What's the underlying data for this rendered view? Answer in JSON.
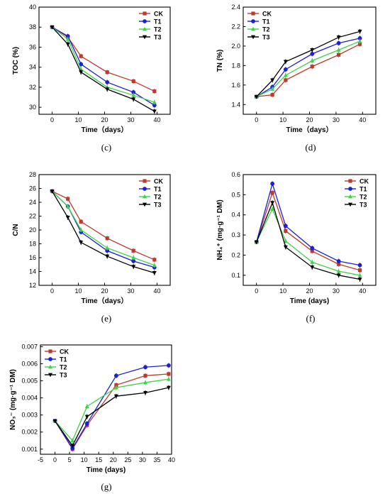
{
  "chart_data": [
    {
      "panel": "(c)",
      "type": "line",
      "xlabel": "Time（days）",
      "ylabel": "TOC (%)",
      "xlim": [
        -5,
        45
      ],
      "ylim": [
        29.3,
        40
      ],
      "xticks": [
        0,
        10,
        20,
        30,
        40
      ],
      "yticks": [
        30,
        32,
        34,
        36,
        38,
        40
      ],
      "x": [
        0,
        6,
        11,
        21,
        31,
        39
      ],
      "legend_position": "top-right",
      "series": [
        {
          "name": "CK",
          "color": "#c0392b",
          "marker": "square",
          "values": [
            38.0,
            37.0,
            35.1,
            33.5,
            32.6,
            31.6
          ]
        },
        {
          "name": "T1",
          "color": "#1f1fd6",
          "marker": "circle",
          "values": [
            38.0,
            37.1,
            34.3,
            32.5,
            31.5,
            30.2
          ]
        },
        {
          "name": "T2",
          "color": "#3fd24a",
          "marker": "triangle",
          "values": [
            38.0,
            36.8,
            33.8,
            32.0,
            31.2,
            30.5
          ]
        },
        {
          "name": "T3",
          "color": "#000000",
          "marker": "triangle-down",
          "values": [
            38.0,
            36.3,
            33.5,
            31.8,
            30.8,
            29.6
          ]
        }
      ]
    },
    {
      "panel": "(d)",
      "type": "line",
      "xlabel": "Time（days）",
      "ylabel": "TN (%)",
      "xlim": [
        -5,
        45
      ],
      "ylim": [
        1.3,
        2.4
      ],
      "xticks": [
        0,
        10,
        20,
        30,
        40
      ],
      "yticks": [
        1.4,
        1.6,
        1.8,
        2.0,
        2.2,
        2.4
      ],
      "x": [
        0,
        6,
        11,
        21,
        31,
        39
      ],
      "legend_position": "top-left",
      "series": [
        {
          "name": "CK",
          "color": "#c0392b",
          "marker": "square",
          "values": [
            1.48,
            1.5,
            1.65,
            1.79,
            1.91,
            2.02
          ]
        },
        {
          "name": "T1",
          "color": "#1f1fd6",
          "marker": "circle",
          "values": [
            1.48,
            1.58,
            1.76,
            1.92,
            2.03,
            2.08
          ]
        },
        {
          "name": "T2",
          "color": "#3fd24a",
          "marker": "triangle",
          "values": [
            1.48,
            1.56,
            1.7,
            1.85,
            1.96,
            2.05
          ]
        },
        {
          "name": "T3",
          "color": "#000000",
          "marker": "triangle-down",
          "values": [
            1.48,
            1.65,
            1.84,
            1.96,
            2.09,
            2.15
          ]
        }
      ]
    },
    {
      "panel": "(e)",
      "type": "line",
      "xlabel": "Time（days）",
      "ylabel": "C/N",
      "xlim": [
        -5,
        45
      ],
      "ylim": [
        12,
        28
      ],
      "xticks": [
        0,
        10,
        20,
        30,
        40
      ],
      "yticks": [
        12,
        14,
        16,
        18,
        20,
        22,
        24,
        26,
        28
      ],
      "x": [
        0,
        6,
        11,
        21,
        31,
        39
      ],
      "legend_position": "top-right",
      "series": [
        {
          "name": "CK",
          "color": "#c0392b",
          "marker": "square",
          "values": [
            25.6,
            24.5,
            21.2,
            18.8,
            17.0,
            15.7
          ]
        },
        {
          "name": "T1",
          "color": "#1f1fd6",
          "marker": "circle",
          "values": [
            25.6,
            23.4,
            19.7,
            17.0,
            15.5,
            14.6
          ]
        },
        {
          "name": "T2",
          "color": "#3fd24a",
          "marker": "triangle",
          "values": [
            25.6,
            23.4,
            20.0,
            17.4,
            16.0,
            14.9
          ]
        },
        {
          "name": "T3",
          "color": "#000000",
          "marker": "triangle-down",
          "values": [
            25.6,
            21.8,
            18.2,
            16.2,
            14.7,
            13.8
          ]
        }
      ]
    },
    {
      "panel": "(f)",
      "type": "line",
      "xlabel": "Time (days)",
      "ylabel": "NH₄⁺ (mg·g⁻¹ DM)",
      "xlim": [
        -5,
        45
      ],
      "ylim": [
        0.05,
        0.6
      ],
      "xticks": [
        0,
        10,
        20,
        30,
        40
      ],
      "yticks": [
        0.1,
        0.2,
        0.3,
        0.4,
        0.5,
        0.6
      ],
      "x": [
        0,
        6,
        11,
        21,
        31,
        39
      ],
      "legend_position": "top-right",
      "series": [
        {
          "name": "CK",
          "color": "#c0392b",
          "marker": "square",
          "values": [
            0.265,
            0.51,
            0.32,
            0.22,
            0.155,
            0.125
          ]
        },
        {
          "name": "T1",
          "color": "#1f1fd6",
          "marker": "circle",
          "values": [
            0.265,
            0.555,
            0.345,
            0.235,
            0.17,
            0.15
          ]
        },
        {
          "name": "T2",
          "color": "#3fd24a",
          "marker": "triangle",
          "values": [
            0.265,
            0.43,
            0.27,
            0.165,
            0.12,
            0.1
          ]
        },
        {
          "name": "T3",
          "color": "#000000",
          "marker": "triangle-down",
          "values": [
            0.265,
            0.46,
            0.24,
            0.14,
            0.1,
            0.08
          ]
        }
      ]
    },
    {
      "panel": "(g)",
      "type": "line",
      "xlabel": "Time (days)",
      "ylabel": "NO₃⁻ (mg·g⁻¹ DM)",
      "xlim": [
        -5,
        40
      ],
      "ylim": [
        0.0007,
        0.0071
      ],
      "xticks": [
        -5,
        0,
        5,
        10,
        15,
        20,
        25,
        30,
        35,
        40
      ],
      "yticks": [
        0.001,
        0.002,
        0.003,
        0.004,
        0.005,
        0.006,
        0.007
      ],
      "ytick_labels": [
        "0.001",
        "0.002",
        "0.003",
        "0.004",
        "0.005",
        "0.006",
        "0.007"
      ],
      "x": [
        0,
        6,
        11,
        21,
        31,
        39
      ],
      "legend_position": "top-left",
      "series": [
        {
          "name": "CK",
          "color": "#c0392b",
          "marker": "square",
          "values": [
            0.00265,
            0.001,
            0.0024,
            0.00475,
            0.0053,
            0.0054
          ]
        },
        {
          "name": "T1",
          "color": "#1f1fd6",
          "marker": "circle",
          "values": [
            0.00265,
            0.00105,
            0.0025,
            0.0053,
            0.0058,
            0.0059
          ]
        },
        {
          "name": "T2",
          "color": "#3fd24a",
          "marker": "triangle",
          "values": [
            0.00265,
            0.0015,
            0.0035,
            0.0046,
            0.0049,
            0.0051
          ]
        },
        {
          "name": "T3",
          "color": "#000000",
          "marker": "triangle-down",
          "values": [
            0.00265,
            0.0012,
            0.0029,
            0.0041,
            0.0043,
            0.0046
          ]
        }
      ]
    }
  ]
}
